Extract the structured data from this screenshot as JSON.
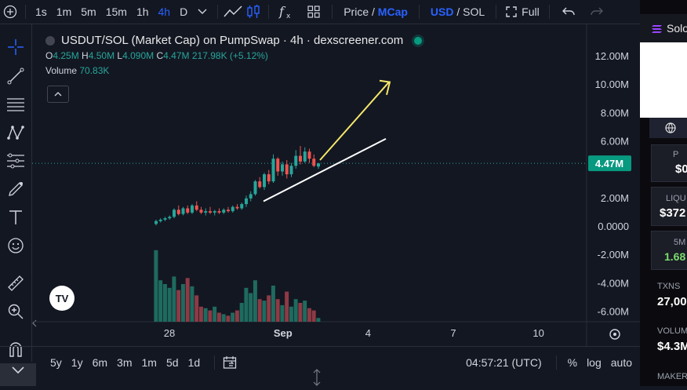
{
  "toolbar": {
    "intervals": [
      "1s",
      "1m",
      "5m",
      "15m",
      "1h",
      "4h",
      "D"
    ],
    "active_interval": "4h",
    "price_label": "Price",
    "price_sep": "/",
    "mcap_label": "MCap",
    "usd_label": "USD",
    "currency_sep": "/",
    "sol_label": "SOL",
    "full_label": "Full"
  },
  "legend": {
    "title": "USDUT/SOL (Market Cap) on PumpSwap · 4h · dexscreener.com",
    "o_label": "O",
    "o_value": "4.25M",
    "h_label": "H",
    "h_value": "4.50M",
    "l_label": "L",
    "l_value": "4.090M",
    "c_label": "C",
    "c_value": "4.47M",
    "change": "217.98K (+5.12%)",
    "volume_label": "Volume",
    "volume_value": "70.83K"
  },
  "chart_data": {
    "type": "candlestick",
    "y_ticks": [
      "12.00M",
      "10.00M",
      "8.00M",
      "6.00M",
      "2.00M",
      "0.0000",
      "-2.00M",
      "-4.00M",
      "-6.00M"
    ],
    "y_tick_values": [
      12,
      10,
      8,
      6,
      2,
      0,
      -2,
      -4,
      -6
    ],
    "x_ticks": [
      "28",
      "Sep",
      "4",
      "7",
      "10"
    ],
    "x_tick_days": [
      0,
      4,
      7,
      10,
      13
    ],
    "last_price_label": "4.47M",
    "last_price_value": 4.47,
    "logo": "TV",
    "colors": {
      "up": "#26a69a",
      "down": "#ef5350",
      "volume_up": "#1e6b5f",
      "volume_down": "#8e3a45",
      "arrow": "#f5e76a",
      "trendline": "#ffffff"
    },
    "candles": [
      {
        "o": 0.2,
        "h": 0.5,
        "l": 0.1,
        "c": 0.4
      },
      {
        "o": 0.4,
        "h": 0.6,
        "l": 0.3,
        "c": 0.5
      },
      {
        "o": 0.5,
        "h": 0.7,
        "l": 0.4,
        "c": 0.6
      },
      {
        "o": 0.6,
        "h": 0.8,
        "l": 0.5,
        "c": 0.7
      },
      {
        "o": 0.7,
        "h": 1.3,
        "l": 0.6,
        "c": 1.2
      },
      {
        "o": 1.2,
        "h": 1.5,
        "l": 0.8,
        "c": 0.9
      },
      {
        "o": 0.9,
        "h": 1.4,
        "l": 0.8,
        "c": 1.3
      },
      {
        "o": 1.3,
        "h": 1.5,
        "l": 0.9,
        "c": 1.0
      },
      {
        "o": 1.0,
        "h": 1.6,
        "l": 0.9,
        "c": 1.5
      },
      {
        "o": 1.5,
        "h": 1.8,
        "l": 1.1,
        "c": 1.2
      },
      {
        "o": 1.2,
        "h": 1.4,
        "l": 0.9,
        "c": 1.0
      },
      {
        "o": 1.0,
        "h": 1.3,
        "l": 0.8,
        "c": 1.1
      },
      {
        "o": 1.1,
        "h": 1.4,
        "l": 0.9,
        "c": 1.0
      },
      {
        "o": 1.0,
        "h": 1.2,
        "l": 0.8,
        "c": 1.1
      },
      {
        "o": 1.1,
        "h": 1.3,
        "l": 0.9,
        "c": 1.0
      },
      {
        "o": 1.0,
        "h": 1.3,
        "l": 0.9,
        "c": 1.2
      },
      {
        "o": 1.2,
        "h": 1.4,
        "l": 1.0,
        "c": 1.1
      },
      {
        "o": 1.1,
        "h": 1.5,
        "l": 1.0,
        "c": 1.4
      },
      {
        "o": 1.4,
        "h": 1.6,
        "l": 1.2,
        "c": 1.3
      },
      {
        "o": 1.3,
        "h": 1.7,
        "l": 1.2,
        "c": 1.6
      },
      {
        "o": 1.6,
        "h": 2.2,
        "l": 1.4,
        "c": 2.0
      },
      {
        "o": 2.0,
        "h": 2.5,
        "l": 1.8,
        "c": 2.3
      },
      {
        "o": 2.3,
        "h": 3.3,
        "l": 2.2,
        "c": 3.2
      },
      {
        "o": 3.2,
        "h": 3.5,
        "l": 2.7,
        "c": 2.8
      },
      {
        "o": 2.8,
        "h": 3.8,
        "l": 2.6,
        "c": 3.7
      },
      {
        "o": 3.7,
        "h": 4.0,
        "l": 3.0,
        "c": 3.2
      },
      {
        "o": 3.2,
        "h": 5.1,
        "l": 3.1,
        "c": 4.8
      },
      {
        "o": 4.8,
        "h": 4.9,
        "l": 3.6,
        "c": 3.9
      },
      {
        "o": 3.9,
        "h": 4.6,
        "l": 3.6,
        "c": 4.4
      },
      {
        "o": 4.4,
        "h": 4.7,
        "l": 3.4,
        "c": 3.7
      },
      {
        "o": 3.7,
        "h": 4.5,
        "l": 3.5,
        "c": 4.3
      },
      {
        "o": 4.3,
        "h": 5.4,
        "l": 4.1,
        "c": 5.0
      },
      {
        "o": 5.0,
        "h": 5.7,
        "l": 4.4,
        "c": 4.6
      },
      {
        "o": 4.6,
        "h": 5.6,
        "l": 4.5,
        "c": 5.3
      },
      {
        "o": 5.3,
        "h": 5.5,
        "l": 4.5,
        "c": 4.8
      },
      {
        "o": 4.8,
        "h": 5.1,
        "l": 4.2,
        "c": 4.3
      },
      {
        "o": 4.25,
        "h": 4.5,
        "l": 4.09,
        "c": 4.47
      }
    ],
    "volumes": [
      0.95,
      0.55,
      0.5,
      0.45,
      0.6,
      0.42,
      0.5,
      0.58,
      0.47,
      0.35,
      0.2,
      0.18,
      0.15,
      0.2,
      0.12,
      0.1,
      0.08,
      0.12,
      0.15,
      0.25,
      0.45,
      0.38,
      0.55,
      0.3,
      0.28,
      0.35,
      0.48,
      0.3,
      0.22,
      0.4,
      0.2,
      0.3,
      0.25,
      0.28,
      0.18,
      0.15,
      0.05
    ],
    "volume_up": [
      true,
      true,
      true,
      true,
      true,
      false,
      true,
      false,
      true,
      false,
      false,
      true,
      false,
      true,
      false,
      true,
      false,
      true,
      false,
      true,
      true,
      true,
      true,
      false,
      true,
      false,
      true,
      false,
      true,
      false,
      true,
      true,
      false,
      true,
      false,
      false,
      true
    ]
  },
  "bottombar": {
    "ranges": [
      "5y",
      "1y",
      "6m",
      "3m",
      "1m",
      "5d",
      "1d"
    ],
    "clock": "04:57:21 (UTC)",
    "percent_label": "%",
    "log_label": "log",
    "auto_label": "auto"
  },
  "right_panel": {
    "header": "Solo",
    "price_label": "P",
    "price_value": "$0",
    "liquidity_label": "LIQU",
    "liquidity_value": "$372",
    "tf_label": "5M",
    "tf_value": "1.68",
    "txns_label": "TXNS",
    "txns_value": "27,00",
    "volume_label": "VOLUM",
    "volume_value": "$4.3M",
    "maker_label": "MAKER"
  }
}
